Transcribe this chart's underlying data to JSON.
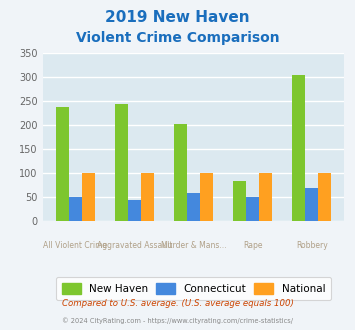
{
  "title_line1": "2019 New Haven",
  "title_line2": "Violent Crime Comparison",
  "cat_labels_row1": [
    "",
    "Aggravated Assault",
    "",
    "Rape",
    ""
  ],
  "cat_labels_row2": [
    "All Violent Crime",
    "",
    "Murder & Mans...",
    "",
    "Robbery"
  ],
  "new_haven": [
    238,
    243,
    201,
    83,
    303
  ],
  "connecticut": [
    50,
    44,
    59,
    51,
    68
  ],
  "national": [
    100,
    100,
    100,
    100,
    100
  ],
  "bar_width": 0.22,
  "ylim": [
    0,
    350
  ],
  "yticks": [
    0,
    50,
    100,
    150,
    200,
    250,
    300,
    350
  ],
  "color_new_haven": "#7dc62e",
  "color_connecticut": "#4488dd",
  "color_national": "#ffa020",
  "title_color": "#1a6ebd",
  "plot_bg": "#dce9f0",
  "fig_bg": "#f0f4f8",
  "grid_color": "#ffffff",
  "legend_labels": [
    "New Haven",
    "Connecticut",
    "National"
  ],
  "footnote1": "Compared to U.S. average. (U.S. average equals 100)",
  "footnote2": "© 2024 CityRating.com - https://www.cityrating.com/crime-statistics/",
  "footnote1_color": "#cc4400",
  "footnote2_color": "#888888",
  "xlabel_color": "#b0a088"
}
